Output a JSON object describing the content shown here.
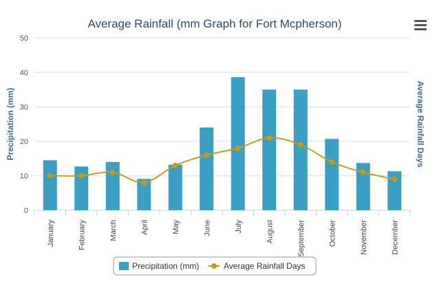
{
  "chart_data": {
    "type": "bar",
    "title": "Average Rainfall (mm Graph for Fort Mcpherson)",
    "categories": [
      "January",
      "February",
      "March",
      "April",
      "May",
      "June",
      "July",
      "August",
      "September",
      "October",
      "November",
      "December"
    ],
    "series": [
      {
        "name": "Precipitation (mm)",
        "type": "bar",
        "axis": "left",
        "values": [
          14.5,
          12.7,
          14.0,
          9.1,
          13.2,
          24.0,
          38.6,
          35.0,
          35.0,
          20.7,
          13.7,
          11.3
        ]
      },
      {
        "name": "Average Rainfall Days",
        "type": "line",
        "axis": "right",
        "smooth": true,
        "values": [
          10,
          10,
          11,
          8,
          13,
          16,
          18,
          21,
          19,
          14,
          11,
          9
        ]
      }
    ],
    "ylabel": "Precipitation (mm)",
    "y2label": "Average Rainfall Days",
    "ylim": [
      0,
      50
    ],
    "y2lim": [
      0,
      50
    ],
    "yticks": [
      0,
      10,
      20,
      30,
      40,
      50
    ],
    "grid": true,
    "legend": "bottom-center",
    "colors": {
      "bar": "#3a9fc2",
      "line": "#c99a1a",
      "title": "#2b4a6f",
      "axis_label": "#3d6a9a"
    }
  },
  "ui": {
    "menu_icon": "hamburger-menu-icon"
  }
}
